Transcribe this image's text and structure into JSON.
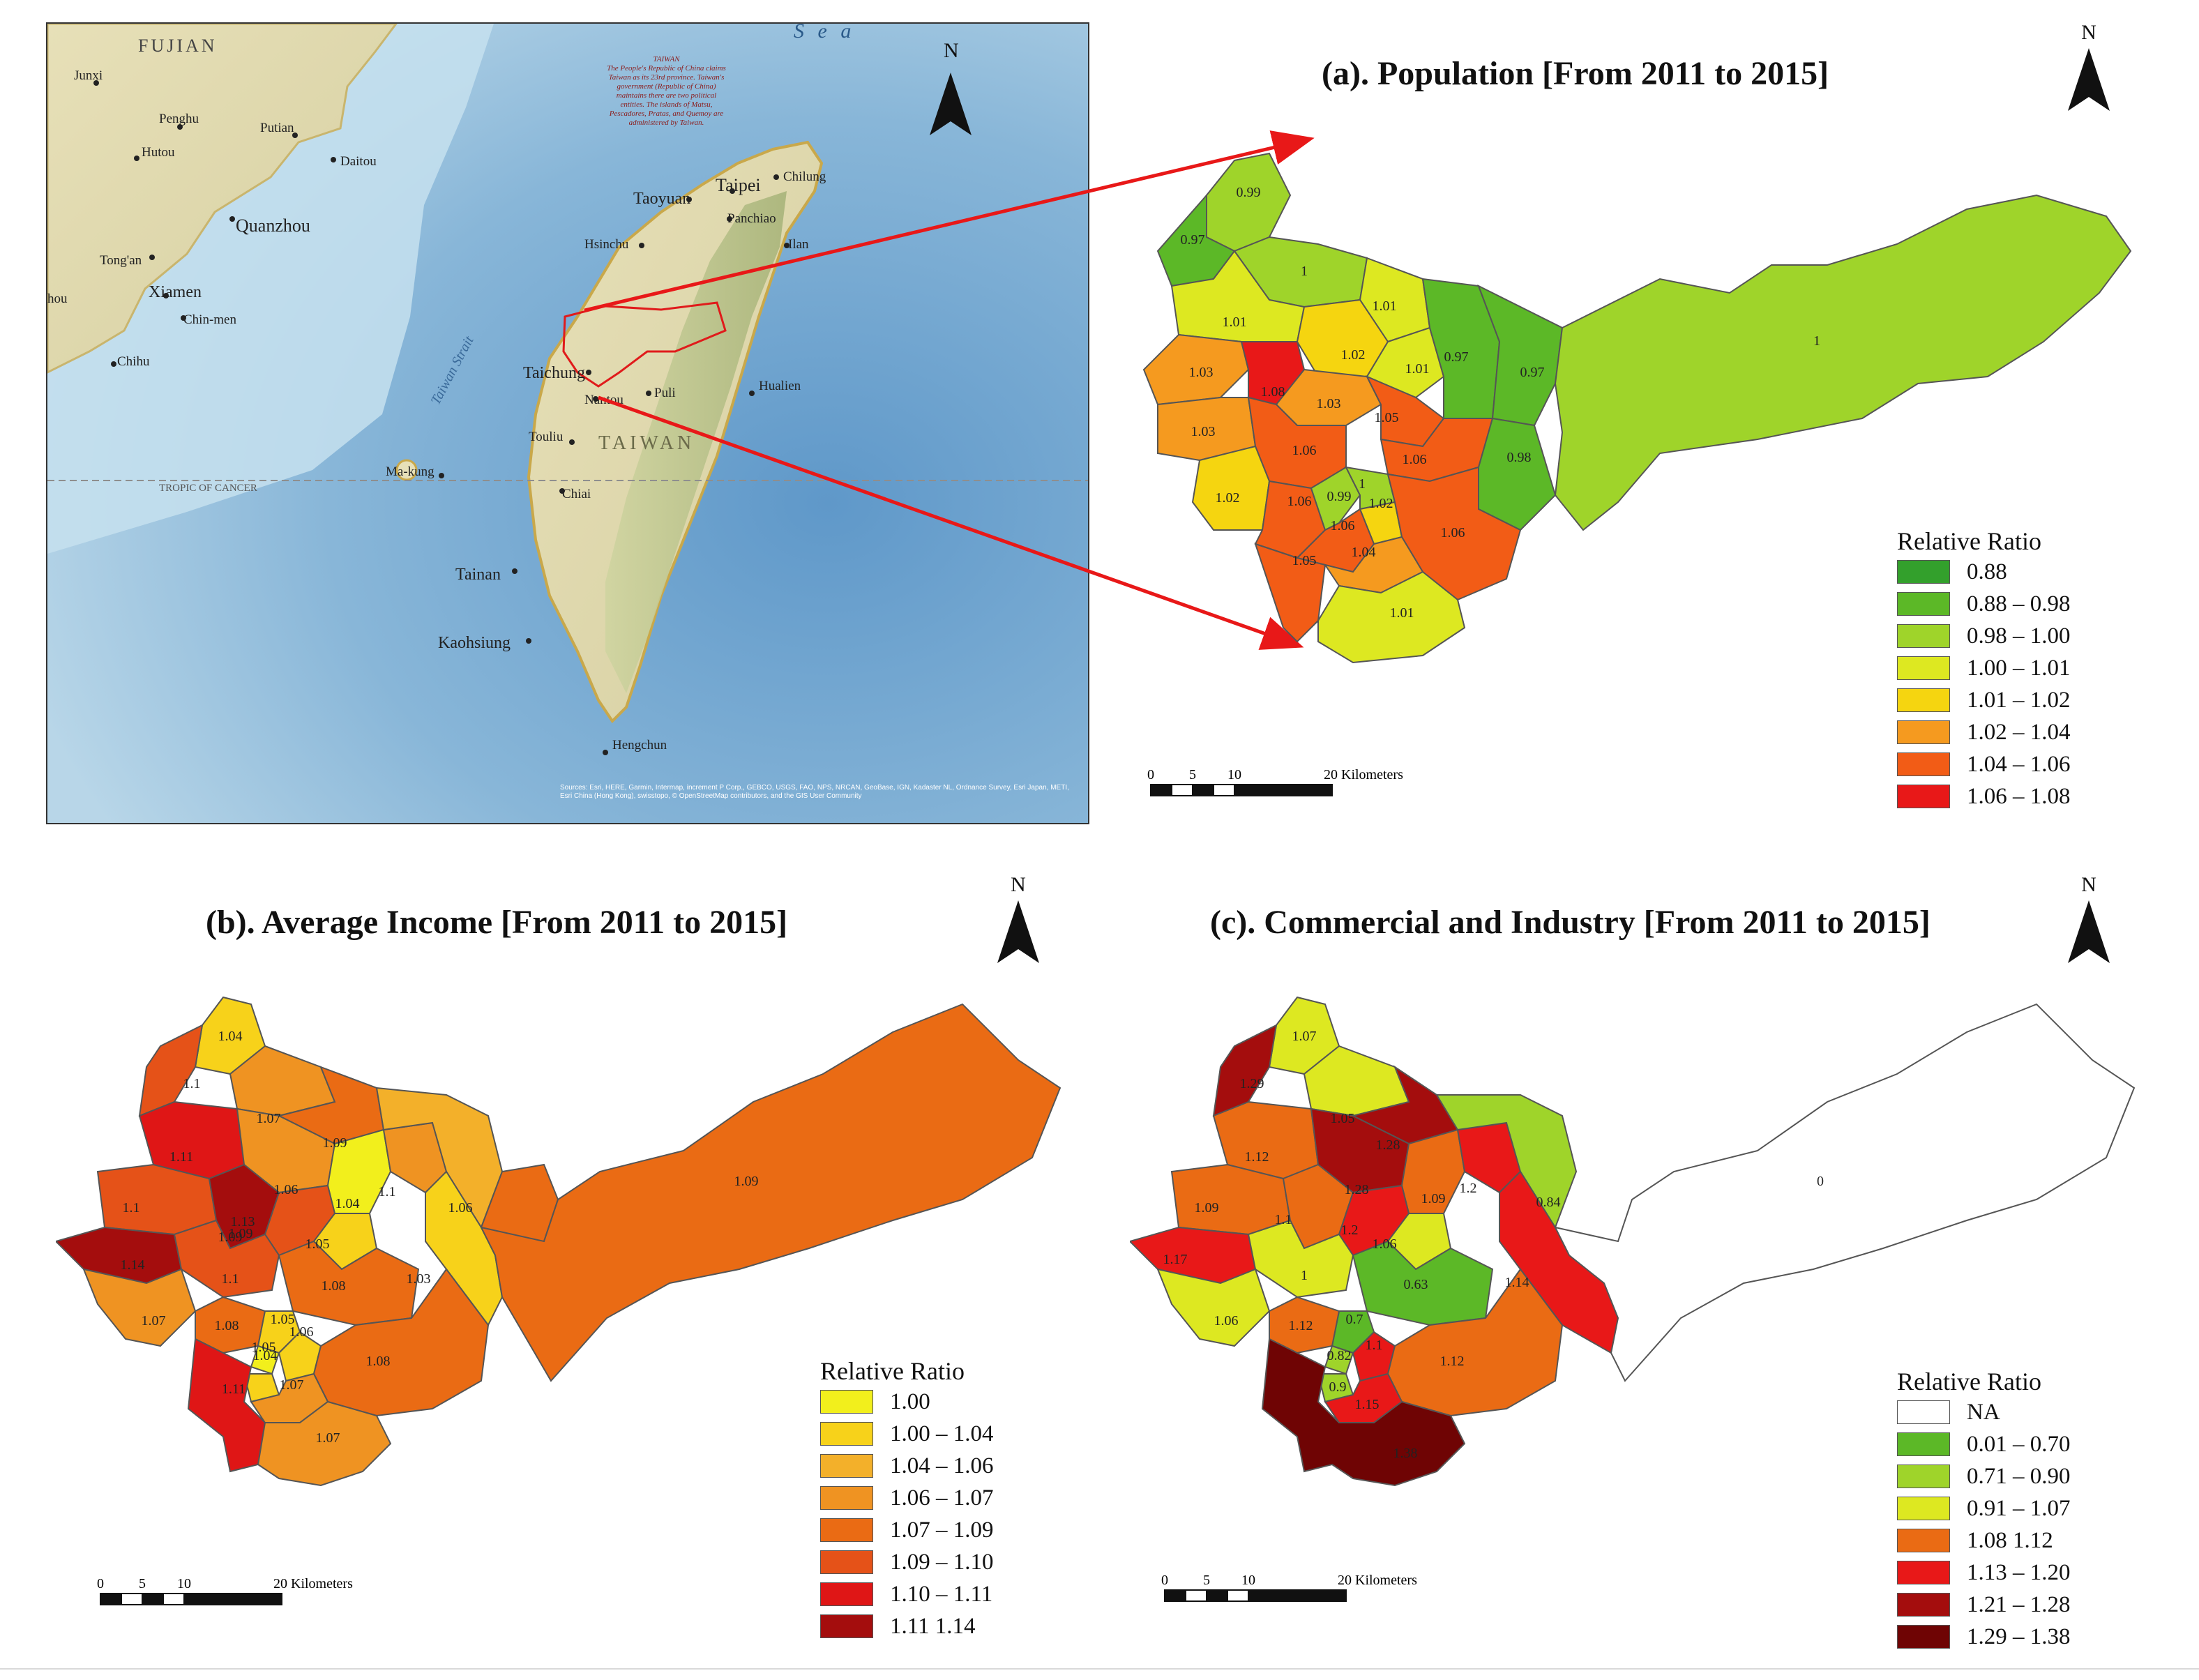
{
  "overview_map": {
    "north_label": "N",
    "sea_label": "S e a",
    "province_label": "FUJIAN",
    "country_label": "TAIWAN",
    "strait_label": "Taiwan Strait",
    "tropic_label": "TROPIC OF CANCER",
    "note_text": "TAIWAN\nThe People's Republic of China claims Taiwan as its 23rd province. Taiwan's government (Republic of China) maintains there are two political entities. The islands of Matsu, Pescadores, Pratas, and Quemoy are administered by Taiwan.",
    "attribution": "Sources: Esri, HERE, Garmin, Intermap, increment P Corp., GEBCO, USGS, FAO, NPS, NRCAN, GeoBase, IGN, Kadaster NL, Ordnance Survey, Esri Japan, METI, Esri China (Hong Kong), swisstopo, © OpenStreetMap contributors, and the GIS User Community",
    "cities": [
      "Junxi",
      "Penghu",
      "Hutou",
      "Putian",
      "Daitou",
      "Quanzhou",
      "Tong'an",
      "Xiamen",
      "Chin-men",
      "Chihu",
      "hou",
      "Taoyuan",
      "Taipei",
      "Chilung",
      "Panchiao",
      "Hsinchu",
      "Ilan",
      "Taichung",
      "Puli",
      "Nantou",
      "Hualien",
      "Touliu",
      "Chiai",
      "Ma-kung",
      "Tainan",
      "Kaohsiung",
      "Hengchun"
    ]
  },
  "map_a": {
    "title": "(a).  Population [From 2011 to 2015]",
    "north_label": "N",
    "legend": {
      "title": "Relative Ratio",
      "items": [
        {
          "label": "0.88",
          "color": "#33a02c"
        },
        {
          "label": "0.88 – 0.98",
          "color": "#5cb827"
        },
        {
          "label": "0.98 – 1.00",
          "color": "#9fd42a"
        },
        {
          "label": "1.00 – 1.01",
          "color": "#dde821"
        },
        {
          "label": "1.01 – 1.02",
          "color": "#f5d510"
        },
        {
          "label": "1.02 – 1.04",
          "color": "#f59a1f"
        },
        {
          "label": "1.04 – 1.06",
          "color": "#f25c16"
        },
        {
          "label": "1.06 – 1.08",
          "color": "#e81818"
        }
      ]
    },
    "district_values": [
      "0.99",
      "0.97",
      "1",
      "1.01",
      "1.01",
      "1.02",
      "1.01",
      "0.97",
      "0.97",
      "1",
      "1.03",
      "1.08",
      "1.03",
      "1.05",
      "1.03",
      "1.06",
      "1.06",
      "0.98",
      "1.02",
      "1.06",
      "0.99",
      "1",
      "1.02",
      "1.06",
      "1.06",
      "1.05",
      "1.04",
      "1.01"
    ],
    "scale": {
      "ticks": [
        "0",
        "5",
        "10"
      ],
      "end_label": "20 Kilometers"
    }
  },
  "map_b": {
    "title": "(b). Average Income [From 2011 to 2015]",
    "north_label": "N",
    "legend": {
      "title": "Relative Ratio",
      "items": [
        {
          "label": "1.00",
          "color": "#f2ef1c"
        },
        {
          "label": "1.00 – 1.04",
          "color": "#f7d21a"
        },
        {
          "label": "1.04 – 1.06",
          "color": "#f3b02a"
        },
        {
          "label": "1.06 – 1.07",
          "color": "#ef9322"
        },
        {
          "label": "1.07 – 1.09",
          "color": "#ea6b14"
        },
        {
          "label": "1.09 – 1.10",
          "color": "#e55218"
        },
        {
          "label": "1.10 – 1.11",
          "color": "#df1616"
        },
        {
          "label": "1.11   1.14",
          "color": "#a40d0d"
        }
      ]
    },
    "district_values": [
      "1.04",
      "1.1",
      "1.07",
      "1.09",
      "1.11",
      "1.06",
      "1.04",
      "1.1",
      "1.06",
      "1.1",
      "1.13",
      "1.09",
      "1.05",
      "1.09",
      "1.03",
      "1.14",
      "1.1",
      "1.08",
      "1.07",
      "1.08",
      "1.05",
      "1.04",
      "1.06",
      "1.05",
      "1.08",
      "1.11",
      "1.07",
      "1.07"
    ],
    "scale": {
      "ticks": [
        "0",
        "5",
        "10"
      ],
      "end_label": "20 Kilometers"
    }
  },
  "map_c": {
    "title": "(c). Commercial and Industry [From 2011 to 2015]",
    "north_label": "N",
    "legend": {
      "title": "Relative Ratio",
      "items": [
        {
          "label": "NA",
          "color": "#ffffff"
        },
        {
          "label": "0.01 – 0.70",
          "color": "#5cb827"
        },
        {
          "label": "0.71 – 0.90",
          "color": "#9fd42a"
        },
        {
          "label": "0.91 – 1.07",
          "color": "#dde821"
        },
        {
          "label": "1.08   1.12",
          "color": "#ea6b14"
        },
        {
          "label": "1.13 – 1.20",
          "color": "#e81818"
        },
        {
          "label": "1.21 – 1.28",
          "color": "#a40d0d"
        },
        {
          "label": "1.29 – 1.38",
          "color": "#6f0404"
        }
      ]
    },
    "district_values": [
      "1.07",
      "1.29",
      "1.05",
      "1.28",
      "1.12",
      "1.28",
      "1.09",
      "1.2",
      "0.84",
      "1.09",
      "1.1",
      "1.2",
      "1.06",
      "1.17",
      "1",
      "0.63",
      "1.14",
      "0.7",
      "1.06",
      "1.12",
      "0.82",
      "1.1",
      "0.9",
      "1.12",
      "1.15",
      "1.38",
      "0"
    ],
    "scale": {
      "ticks": [
        "0",
        "5",
        "10"
      ],
      "end_label": "20 Kilometers"
    }
  }
}
